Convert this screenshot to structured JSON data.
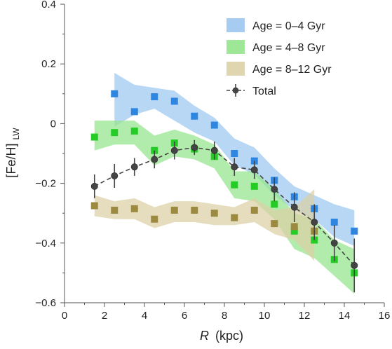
{
  "chart_data": {
    "type": "line",
    "xlabel_italic": "R",
    "xlabel_unit": "(kpc)",
    "ylabel_main": "[Fe/H]",
    "ylabel_sub": "LW",
    "xlim": [
      0,
      16
    ],
    "ylim": [
      -0.6,
      0.4
    ],
    "xticks": [
      0,
      2,
      4,
      6,
      8,
      10,
      12,
      14,
      16
    ],
    "yticks": [
      -0.6,
      -0.4,
      -0.2,
      0,
      0.2,
      0.4
    ],
    "ytick_labels": [
      "−0.6",
      "−0.4",
      "−0.2",
      "0",
      "0.2",
      "0.4"
    ],
    "legend_position": "top-right",
    "series": [
      {
        "name": "Age = 0–4 Gyr",
        "kind": "band",
        "band_color": "#9cc8f0",
        "marker_color": "#2f86e0",
        "x": [
          2.5,
          3.5,
          4.5,
          5.5,
          6.5,
          7.5,
          8.5,
          9.5,
          10.5,
          11.5,
          12.5,
          13.5,
          14.5
        ],
        "y": [
          0.1,
          0.04,
          0.09,
          0.075,
          0.025,
          -0.005,
          -0.1,
          -0.125,
          -0.19,
          -0.245,
          -0.285,
          -0.33,
          -0.36
        ],
        "band_lower": [
          -0.01,
          0.03,
          0.05,
          0.01,
          -0.03,
          -0.06,
          -0.14,
          -0.17,
          -0.24,
          -0.29,
          -0.32,
          -0.38,
          -0.41
        ],
        "band_upper": [
          0.17,
          0.13,
          0.12,
          0.11,
          0.06,
          0.02,
          -0.05,
          -0.08,
          -0.15,
          -0.21,
          -0.24,
          -0.27,
          -0.29
        ]
      },
      {
        "name": "Age = 4–8 Gyr",
        "kind": "band",
        "band_color": "#94e48c",
        "marker_color": "#25cc25",
        "x": [
          1.5,
          2.5,
          3.5,
          4.5,
          5.5,
          6.5,
          7.5,
          8.5,
          9.5,
          10.5,
          11.5,
          12.5,
          13.5,
          14.5
        ],
        "y": [
          -0.045,
          -0.03,
          -0.025,
          -0.09,
          -0.065,
          -0.085,
          -0.11,
          -0.205,
          -0.21,
          -0.27,
          -0.36,
          -0.39,
          -0.455,
          -0.5
        ],
        "band_lower": [
          -0.09,
          -0.07,
          -0.07,
          -0.14,
          -0.11,
          -0.12,
          -0.15,
          -0.25,
          -0.26,
          -0.32,
          -0.42,
          -0.45,
          -0.51,
          -0.57
        ],
        "band_upper": [
          0.01,
          0.01,
          0.01,
          -0.04,
          -0.02,
          -0.04,
          -0.07,
          -0.16,
          -0.16,
          -0.22,
          -0.3,
          -0.32,
          -0.39,
          -0.42
        ]
      },
      {
        "name": "Age = 8–12 Gyr",
        "kind": "band",
        "band_color": "#dbd0a5",
        "marker_color": "#9b8a40",
        "x": [
          1.5,
          2.5,
          3.5,
          4.5,
          5.5,
          6.5,
          7.5,
          8.5,
          9.5,
          10.5,
          11.5,
          12.5
        ],
        "y": [
          -0.275,
          -0.29,
          -0.285,
          -0.32,
          -0.29,
          -0.29,
          -0.3,
          -0.315,
          -0.29,
          -0.335,
          -0.345,
          -0.36
        ],
        "band_lower": [
          -0.31,
          -0.32,
          -0.32,
          -0.35,
          -0.33,
          -0.33,
          -0.34,
          -0.34,
          -0.33,
          -0.37,
          -0.39,
          -0.46
        ],
        "band_upper": [
          -0.24,
          -0.26,
          -0.25,
          -0.28,
          -0.26,
          -0.26,
          -0.27,
          -0.28,
          -0.25,
          -0.29,
          -0.28,
          -0.22
        ]
      },
      {
        "name": "Total",
        "kind": "errorbar",
        "color": "#444444",
        "x": [
          1.5,
          2.5,
          3.5,
          4.5,
          5.5,
          6.5,
          7.5,
          8.5,
          9.5,
          10.5,
          11.5,
          12.5,
          13.5,
          14.5
        ],
        "y": [
          -0.21,
          -0.175,
          -0.145,
          -0.12,
          -0.09,
          -0.08,
          -0.09,
          -0.145,
          -0.155,
          -0.22,
          -0.28,
          -0.33,
          -0.4,
          -0.475
        ],
        "yerr": [
          0.04,
          0.04,
          0.03,
          0.03,
          0.03,
          0.025,
          0.03,
          0.03,
          0.03,
          0.04,
          0.05,
          0.06,
          0.06,
          0.09
        ]
      }
    ]
  }
}
